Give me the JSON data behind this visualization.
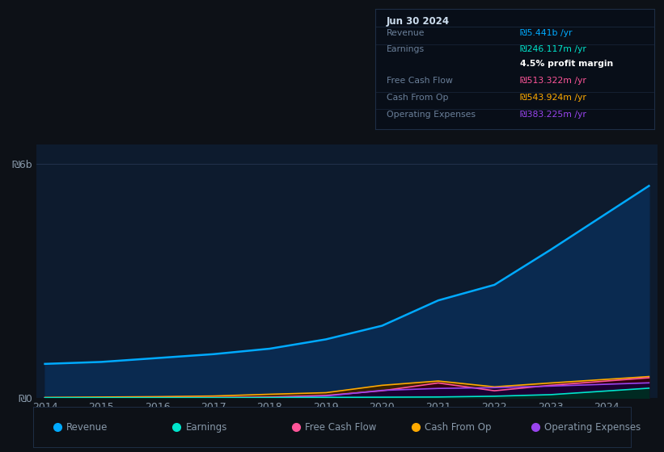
{
  "background_color": "#0d1117",
  "plot_bg_color": "#0d1b2e",
  "grid_color": "#253550",
  "text_color": "#8899aa",
  "ylim": [
    0,
    6500000000
  ],
  "xtick_labels": [
    "2014",
    "2015",
    "2016",
    "2017",
    "2018",
    "2019",
    "2020",
    "2021",
    "2022",
    "2023",
    "2024"
  ],
  "x_years": [
    2013.5,
    2014.5,
    2015.5,
    2016.5,
    2017.5,
    2018.5,
    2019.5,
    2020.5,
    2021.5,
    2022.5,
    2024.25
  ],
  "series": {
    "Revenue": {
      "color": "#00aaff",
      "fill_color": "#0a2a50",
      "values": [
        870000000,
        920000000,
        1020000000,
        1120000000,
        1260000000,
        1500000000,
        1850000000,
        2500000000,
        2900000000,
        3800000000,
        5441000000
      ]
    },
    "Earnings": {
      "color": "#00e5cc",
      "fill_color": "#002a22",
      "values": [
        -20000000,
        -15000000,
        -10000000,
        -5000000,
        5000000,
        10000000,
        15000000,
        20000000,
        40000000,
        80000000,
        246117000
      ]
    },
    "Free Cash Flow": {
      "color": "#ff5599",
      "fill_color": "#330011",
      "values": [
        -8000000,
        -5000000,
        3000000,
        8000000,
        20000000,
        60000000,
        180000000,
        380000000,
        180000000,
        320000000,
        513322000
      ]
    },
    "Cash From Op": {
      "color": "#ffaa00",
      "fill_color": "#3a2000",
      "values": [
        8000000,
        18000000,
        28000000,
        45000000,
        90000000,
        130000000,
        320000000,
        430000000,
        280000000,
        380000000,
        543924000
      ]
    },
    "Operating Expenses": {
      "color": "#9944ee",
      "fill_color": "#1a0033",
      "values": [
        -3000000,
        -5000000,
        -8000000,
        -12000000,
        -15000000,
        45000000,
        190000000,
        240000000,
        260000000,
        300000000,
        383225000
      ]
    }
  },
  "tooltip": {
    "date": "Jun 30 2024",
    "bg": "#080e18",
    "border": "#1e2e45",
    "title_color": "#ccddee",
    "rows": [
      {
        "label": "Revenue",
        "value": "₪5.441b /yr",
        "value_color": "#00aaff"
      },
      {
        "label": "Earnings",
        "value": "₪246.117m /yr",
        "value_color": "#00e5cc"
      },
      {
        "label": "",
        "value": "4.5% profit margin",
        "value_color": "#ffffff"
      },
      {
        "label": "Free Cash Flow",
        "value": "₪513.322m /yr",
        "value_color": "#ff5599"
      },
      {
        "label": "Cash From Op",
        "value": "₪543.924m /yr",
        "value_color": "#ffaa00"
      },
      {
        "label": "Operating Expenses",
        "value": "₪383.225m /yr",
        "value_color": "#9944ee"
      }
    ]
  },
  "legend": [
    {
      "label": "Revenue",
      "color": "#00aaff"
    },
    {
      "label": "Earnings",
      "color": "#00e5cc"
    },
    {
      "label": "Free Cash Flow",
      "color": "#ff5599"
    },
    {
      "label": "Cash From Op",
      "color": "#ffaa00"
    },
    {
      "label": "Operating Expenses",
      "color": "#9944ee"
    }
  ]
}
